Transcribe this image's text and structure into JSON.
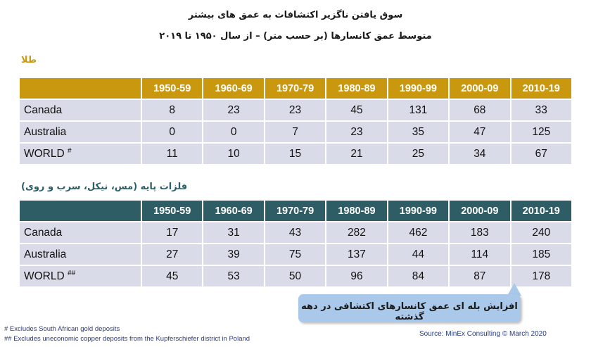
{
  "title": "سوق یافتن ناگزیر اکتشافات به عمق های بیشتر",
  "subtitle": "متوسط عمق کانسارها (بر حسب متر) – از سال ۱۹۵۰ تا ۲۰۱۹",
  "columns": [
    "1950-59",
    "1960-69",
    "1970-79",
    "1980-89",
    "1990-99",
    "2000-09",
    "2010-19"
  ],
  "gold": {
    "label": "طلا",
    "rows": [
      {
        "name": "Canada",
        "mark": "",
        "values": [
          "8",
          "23",
          "23",
          "45",
          "131",
          "68",
          "33"
        ]
      },
      {
        "name": "Australia",
        "mark": "",
        "values": [
          "0",
          "0",
          "7",
          "23",
          "35",
          "47",
          "125"
        ]
      },
      {
        "name": "WORLD",
        "mark": "#",
        "values": [
          "11",
          "10",
          "15",
          "21",
          "25",
          "34",
          "67"
        ]
      }
    ]
  },
  "base_metals": {
    "label": "فلزات پایه (مس، نیکل، سرب و روی)",
    "rows": [
      {
        "name": "Canada",
        "mark": "",
        "values": [
          "17",
          "31",
          "43",
          "282",
          "462",
          "183",
          "240"
        ]
      },
      {
        "name": "Australia",
        "mark": "",
        "values": [
          "27",
          "39",
          "75",
          "137",
          "44",
          "114",
          "185"
        ]
      },
      {
        "name": "WORLD",
        "mark": "##",
        "values": [
          "45",
          "53",
          "50",
          "96",
          "84",
          "87",
          "178"
        ]
      }
    ]
  },
  "callout": "افزایش بله ای عمق کانسارهای اکتشافی در دهه گذشته",
  "footnotes": [
    "# Excludes South African gold deposits",
    "## Excludes uneconomic copper deposits from the Kupferschiefer district in Poland"
  ],
  "source": "Source: MinEx Consulting  © March 2020",
  "colors": {
    "gold_header": "#c9980f",
    "base_header": "#2f5d66",
    "cell_bg": "#d9dce8",
    "callout_bg": "#a9c8ea"
  }
}
